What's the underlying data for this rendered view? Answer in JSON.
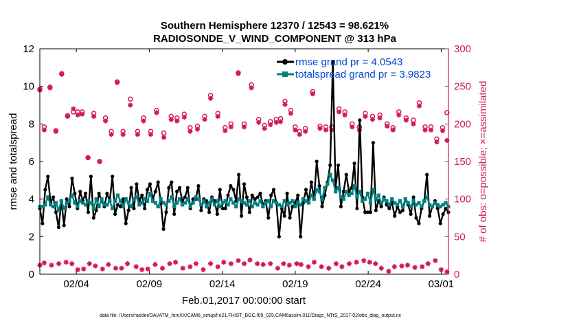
{
  "chart_data": {
    "type": "line",
    "title_line1": "Southern Hemisphere 12370 / 12543 = 98.621%",
    "title_line2": "RADIOSONDE_V_WIND_COMPONENT @ 313 hPa",
    "xlabel": "Feb.01,2017 00:00:00 start",
    "ylabel_left": "rmse and totalspread",
    "ylabel_right": "# of obs: o=possible; ×=assimilated",
    "footer": "data file: /Users/raeder/DAI/ATM_forcXX/CAM6_setup/f.e21.FHIST_BGC.f09_025.CAM6assim.011/Diags_NTrS_2017-02/obs_diag_output.nc",
    "xlim": [
      1.0,
      29.0
    ],
    "ylim_left": [
      0,
      12
    ],
    "ylim_right": [
      0,
      300
    ],
    "x_ticks": [
      {
        "x": 3.5,
        "label": "02/04"
      },
      {
        "x": 8.5,
        "label": "02/09"
      },
      {
        "x": 13.5,
        "label": "02/14"
      },
      {
        "x": 18.5,
        "label": "02/19"
      },
      {
        "x": 23.5,
        "label": "02/24"
      },
      {
        "x": 28.5,
        "label": "03/01"
      }
    ],
    "y_ticks_left": [
      "0",
      "2",
      "4",
      "6",
      "8",
      "10",
      "12"
    ],
    "y_ticks_right": [
      "0",
      "50",
      "100",
      "150",
      "200",
      "250",
      "300"
    ],
    "colors": {
      "rmse": "#000000",
      "spread": "#00807f",
      "obs": "#d3185a",
      "right_axis": "#cc1c5a",
      "legend_text": "#0047d1"
    },
    "legend": [
      {
        "label": "rmse grand pr = 4.0543",
        "series": "rmse"
      },
      {
        "label": "totalspread grand pr = 3.9823",
        "series": "totalspread"
      }
    ],
    "series": [
      {
        "name": "rmse",
        "values": [
          3.5,
          2.7,
          4.5,
          5.2,
          3.8,
          4.1,
          3.3,
          2.5,
          3.9,
          2.6,
          4.0,
          3.6,
          5.1,
          4.3,
          3.5,
          4.4,
          3.9,
          4.3,
          3.3,
          5.2,
          3.0,
          3.4,
          4.3,
          3.9,
          3.6,
          4.3,
          3.9,
          5.2,
          3.2,
          3.7,
          3.6,
          4.0,
          2.7,
          3.4,
          4.6,
          3.5,
          4.8,
          3.9,
          4.2,
          3.5,
          4.5,
          4.8,
          4.0,
          4.4,
          4.9,
          3.8,
          2.4,
          3.3,
          4.6,
          4.9,
          3.2,
          4.4,
          4.6,
          3.9,
          4.1,
          4.6,
          3.5,
          4.0,
          4.0,
          4.7,
          3.4,
          4.0,
          3.9,
          3.3,
          4.1,
          3.9,
          3.2,
          4.5,
          3.5,
          3.5,
          4.2,
          4.7,
          4.5,
          3.9,
          5.3,
          3.1,
          4.8,
          4.1,
          3.3,
          4.2,
          4.0,
          4.1,
          4.3,
          3.7,
          3.9,
          3.0,
          4.2,
          4.5,
          3.8,
          2.0,
          3.5,
          3.1,
          4.3,
          3.0,
          3.6,
          3.8,
          4.2,
          2.0,
          3.8,
          4.5,
          3.9,
          4.9,
          4.0,
          6.0,
          4.7,
          3.6,
          4.2,
          4.9,
          5.8,
          11.3,
          4.6,
          5.8,
          3.6,
          4.4,
          5.3,
          4.4,
          4.6,
          5.9,
          3.5,
          8.2,
          4.1,
          3.3,
          3.3,
          3.3,
          7.0,
          3.4,
          3.9,
          3.6,
          4.1,
          3.7,
          3.5,
          3.8,
          3.1,
          3.6,
          3.3,
          3.4,
          4.0,
          3.7,
          3.2,
          4.1,
          3.0,
          2.7,
          3.5,
          3.9,
          5.3,
          3.1,
          3.6,
          3.9,
          3.5,
          2.7,
          3.2,
          3.5,
          3.3
        ]
      },
      {
        "name": "totalspread",
        "values": [
          3.6,
          3.6,
          3.7,
          4.1,
          3.7,
          3.6,
          3.8,
          3.4,
          3.9,
          3.5,
          3.8,
          3.9,
          4.2,
          3.8,
          3.6,
          3.9,
          3.8,
          3.7,
          3.9,
          3.8,
          3.5,
          4.0,
          3.6,
          4.0,
          3.7,
          3.7,
          3.9,
          3.5,
          3.9,
          4.2,
          3.9,
          3.6,
          4.0,
          3.8,
          3.6,
          4.0,
          4.1,
          3.7,
          3.8,
          4.0,
          3.9,
          4.3,
          3.9,
          3.8,
          3.6,
          4.0,
          3.8,
          3.7,
          3.9,
          4.1,
          3.6,
          3.8,
          4.0,
          3.7,
          3.8,
          4.0,
          3.6,
          3.8,
          4.1,
          4.0,
          3.7,
          3.9,
          3.6,
          3.8,
          4.0,
          3.7,
          3.9,
          3.6,
          3.8,
          3.9,
          3.7,
          4.0,
          3.8,
          3.6,
          4.0,
          3.9,
          3.8,
          3.7,
          3.9,
          3.6,
          3.8,
          3.7,
          3.9,
          3.6,
          3.8,
          3.9,
          3.6,
          3.9,
          3.8,
          3.7,
          3.6,
          3.9,
          3.7,
          3.8,
          3.9,
          3.6,
          3.8,
          3.7,
          4.0,
          3.9,
          3.8,
          4.2,
          4.0,
          4.5,
          4.4,
          4.0,
          4.6,
          4.8,
          5.3,
          5.0,
          4.4,
          4.6,
          4.1,
          4.0,
          4.4,
          4.2,
          4.3,
          4.7,
          4.1,
          4.4,
          3.9,
          4.0,
          4.3,
          3.8,
          4.5,
          4.0,
          4.2,
          3.8,
          4.0,
          3.9,
          3.7,
          4.0,
          3.8,
          3.7,
          3.9,
          3.6,
          4.0,
          3.8,
          3.6,
          3.9,
          3.7,
          3.8,
          3.6,
          3.9,
          4.1,
          3.7,
          3.6,
          3.8,
          3.7,
          3.6,
          3.7,
          3.8,
          3.6
        ]
      }
    ],
    "obs_possible": {
      "x": [
        1.0,
        1.3,
        1.7,
        2.1,
        2.5,
        2.9,
        3.3,
        3.6,
        3.9,
        4.3,
        4.7,
        5.1,
        5.5,
        5.9,
        6.3,
        6.7,
        7.2,
        7.7,
        8.1,
        8.6,
        9.0,
        9.5,
        10.0,
        10.4,
        10.9,
        11.3,
        11.8,
        12.3,
        12.7,
        13.2,
        13.7,
        14.1,
        14.6,
        15.0,
        15.5,
        16.0,
        16.4,
        16.8,
        17.2,
        17.5,
        17.8,
        18.2,
        18.5,
        18.8,
        19.2,
        19.7,
        20.2,
        20.6,
        21.0,
        21.5,
        21.9,
        22.4,
        22.9,
        23.3,
        23.8,
        24.3,
        24.8,
        25.2,
        25.6,
        26.1,
        26.6,
        27.0,
        27.4,
        27.8,
        28.2,
        28.6,
        28.9
      ],
      "y": [
        246,
        196,
        249,
        191,
        267,
        211,
        216,
        216,
        216,
        155,
        214,
        150,
        208,
        190,
        256,
        190,
        233,
        190,
        208,
        190,
        218,
        188,
        210,
        208,
        213,
        195,
        197,
        210,
        238,
        214,
        195,
        200,
        268,
        200,
        252,
        206,
        198,
        203,
        206,
        207,
        230,
        218,
        196,
        190,
        194,
        243,
        197,
        196,
        196,
        220,
        216,
        200,
        196,
        214,
        210,
        212,
        200,
        195,
        216,
        208,
        205,
        228,
        196,
        196,
        180,
        195,
        215
      ]
    },
    "obs_assimilated": {
      "x": [
        1.0,
        1.3,
        1.7,
        2.1,
        2.5,
        2.9,
        3.3,
        3.6,
        3.9,
        4.3,
        4.7,
        5.1,
        5.5,
        5.9,
        6.3,
        6.7,
        7.2,
        7.7,
        8.1,
        8.6,
        9.0,
        9.5,
        10.0,
        10.4,
        10.9,
        11.3,
        11.8,
        12.3,
        12.7,
        13.2,
        13.7,
        14.1,
        14.6,
        15.0,
        15.5,
        16.0,
        16.4,
        16.8,
        17.2,
        17.5,
        17.8,
        18.2,
        18.5,
        18.8,
        19.2,
        19.7,
        20.2,
        20.6,
        21.0,
        21.5,
        21.9,
        22.4,
        22.9,
        23.3,
        23.8,
        24.3,
        24.8,
        25.2,
        25.6,
        26.1,
        26.6,
        27.0,
        27.4,
        27.8,
        28.2,
        28.6,
        28.9
      ],
      "y": [
        245,
        192,
        248,
        190,
        266,
        210,
        220,
        212,
        213,
        155,
        210,
        150,
        204,
        186,
        255,
        186,
        225,
        186,
        204,
        186,
        215,
        182,
        206,
        204,
        209,
        190,
        193,
        206,
        234,
        210,
        191,
        196,
        267,
        196,
        248,
        202,
        194,
        199,
        202,
        203,
        226,
        214,
        192,
        186,
        190,
        240,
        194,
        192,
        192,
        216,
        212,
        196,
        192,
        210,
        206,
        208,
        197,
        192,
        212,
        205,
        200,
        224,
        192,
        192,
        176,
        191,
        178
      ]
    },
    "obs_low": {
      "x": [
        1.0,
        1.3,
        1.8,
        2.3,
        2.8,
        3.2,
        3.6,
        4.0,
        4.4,
        4.8,
        5.3,
        5.7,
        6.2,
        6.6,
        7.0,
        7.6,
        8.0,
        8.4,
        8.9,
        9.4,
        9.9,
        10.3,
        10.8,
        11.3,
        11.7,
        12.2,
        12.7,
        13.2,
        13.6,
        14.1,
        14.6,
        15.0,
        15.4,
        15.9,
        16.3,
        16.8,
        17.3,
        17.7,
        18.1,
        18.6,
        18.9,
        19.4,
        19.8,
        20.3,
        20.8,
        21.3,
        21.7,
        22.2,
        22.7,
        23.2,
        23.6,
        24.0,
        24.4,
        24.9,
        25.3,
        25.8,
        26.2,
        26.7,
        27.2,
        27.6,
        28.1,
        28.5,
        28.9
      ],
      "y": [
        12,
        15,
        12,
        14,
        16,
        14,
        6,
        7,
        14,
        11,
        7,
        13,
        8,
        8,
        14,
        10,
        6,
        7,
        13,
        8,
        14,
        16,
        8,
        10,
        14,
        6,
        14,
        10,
        16,
        14,
        18,
        14,
        19,
        14,
        13,
        14,
        8,
        14,
        12,
        14,
        13,
        10,
        16,
        10,
        8,
        14,
        10,
        14,
        16,
        18,
        16,
        14,
        8,
        4,
        10,
        11,
        12,
        9,
        10,
        14,
        18,
        6,
        3
      ]
    }
  }
}
